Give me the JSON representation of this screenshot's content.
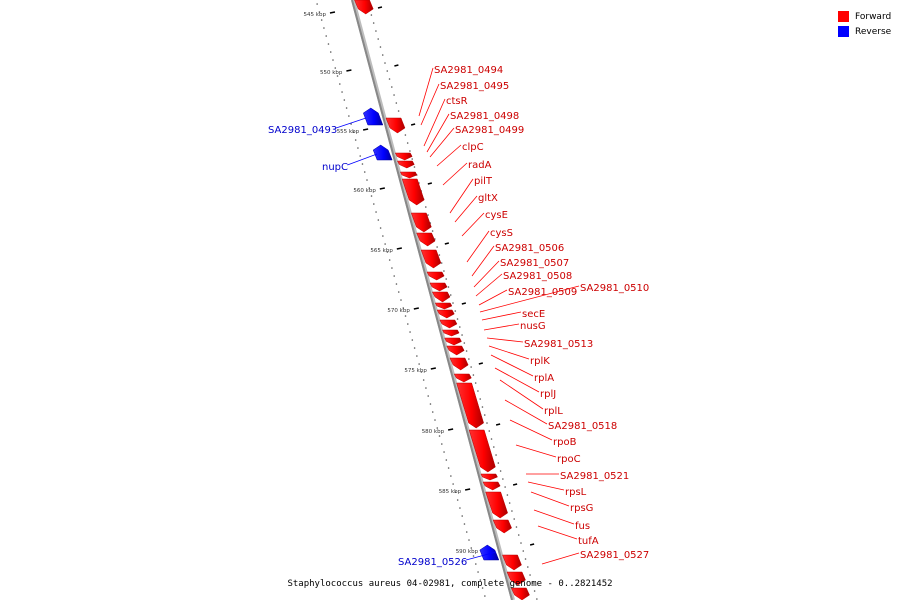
{
  "title": "Staphylococcus aureus 04-02981, complete genome - 0..2821452",
  "legend": {
    "items": [
      {
        "label": "Forward",
        "color": "#ff0000"
      },
      {
        "label": "Reverse",
        "color": "#0000ff"
      }
    ]
  },
  "colors": {
    "forward": "#ff0000",
    "forward_dark": "#b80000",
    "reverse": "#0000ff",
    "reverse_dark": "#0000a0",
    "backbone": "#888888",
    "forward_label": "#cc0000",
    "reverse_label": "#0000cc"
  },
  "axis": {
    "ticks": [
      "545 kbp",
      "550 kbp",
      "555 kbp",
      "560 kbp",
      "565 kbp",
      "570 kbp",
      "575 kbp",
      "580 kbp",
      "585 kbp",
      "590 kbp"
    ]
  },
  "genes": [
    {
      "name": "SA2981_0494",
      "strand": "forward"
    },
    {
      "name": "SA2981_0495",
      "strand": "forward"
    },
    {
      "name": "ctsR",
      "strand": "forward"
    },
    {
      "name": "SA2981_0498",
      "strand": "forward"
    },
    {
      "name": "SA2981_0499",
      "strand": "forward"
    },
    {
      "name": "clpC",
      "strand": "forward"
    },
    {
      "name": "radA",
      "strand": "forward"
    },
    {
      "name": "pilT",
      "strand": "forward"
    },
    {
      "name": "gltX",
      "strand": "forward"
    },
    {
      "name": "cysE",
      "strand": "forward"
    },
    {
      "name": "cysS",
      "strand": "forward"
    },
    {
      "name": "SA2981_0506",
      "strand": "forward"
    },
    {
      "name": "SA2981_0507",
      "strand": "forward"
    },
    {
      "name": "SA2981_0508",
      "strand": "forward"
    },
    {
      "name": "SA2981_0509",
      "strand": "forward"
    },
    {
      "name": "SA2981_0510",
      "strand": "forward"
    },
    {
      "name": "secE",
      "strand": "forward"
    },
    {
      "name": "nusG",
      "strand": "forward"
    },
    {
      "name": "SA2981_0513",
      "strand": "forward"
    },
    {
      "name": "rplK",
      "strand": "forward"
    },
    {
      "name": "rplA",
      "strand": "forward"
    },
    {
      "name": "rplJ",
      "strand": "forward"
    },
    {
      "name": "rplL",
      "strand": "forward"
    },
    {
      "name": "SA2981_0518",
      "strand": "forward"
    },
    {
      "name": "rpoB",
      "strand": "forward"
    },
    {
      "name": "rpoC",
      "strand": "forward"
    },
    {
      "name": "SA2981_0521",
      "strand": "forward"
    },
    {
      "name": "rpsL",
      "strand": "forward"
    },
    {
      "name": "rpsG",
      "strand": "forward"
    },
    {
      "name": "fus",
      "strand": "forward"
    },
    {
      "name": "tufA",
      "strand": "forward"
    },
    {
      "name": "SA2981_0527",
      "strand": "forward"
    },
    {
      "name": "SA2981_0493",
      "strand": "reverse"
    },
    {
      "name": "nupC",
      "strand": "reverse"
    },
    {
      "name": "SA2981_0526",
      "strand": "reverse"
    }
  ]
}
